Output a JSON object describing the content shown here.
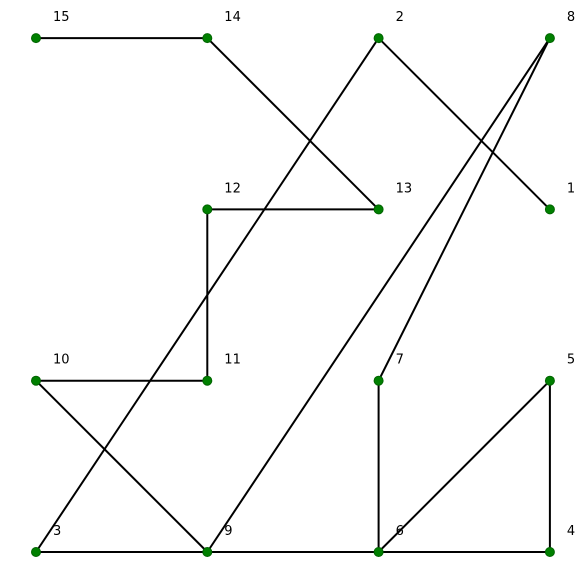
{
  "graph": {
    "node_color": "#008000",
    "edge_color": "#000000",
    "nodes": [
      {
        "id": "1",
        "label": "1",
        "col": 3,
        "row": 2
      },
      {
        "id": "2",
        "label": "2",
        "col": 2,
        "row": 3
      },
      {
        "id": "3",
        "label": "3",
        "col": 0,
        "row": 0
      },
      {
        "id": "4",
        "label": "4",
        "col": 3,
        "row": 0
      },
      {
        "id": "5",
        "label": "5",
        "col": 3,
        "row": 1
      },
      {
        "id": "6",
        "label": "6",
        "col": 2,
        "row": 0
      },
      {
        "id": "7",
        "label": "7",
        "col": 2,
        "row": 1
      },
      {
        "id": "8",
        "label": "8",
        "col": 3,
        "row": 3
      },
      {
        "id": "9",
        "label": "9",
        "col": 1,
        "row": 0
      },
      {
        "id": "10",
        "label": "10",
        "col": 0,
        "row": 1
      },
      {
        "id": "11",
        "label": "11",
        "col": 1,
        "row": 1
      },
      {
        "id": "12",
        "label": "12",
        "col": 1,
        "row": 2
      },
      {
        "id": "13",
        "label": "13",
        "col": 2,
        "row": 2
      },
      {
        "id": "14",
        "label": "14",
        "col": 1,
        "row": 3
      },
      {
        "id": "15",
        "label": "15",
        "col": 0,
        "row": 3
      }
    ],
    "edges": [
      [
        "15",
        "14"
      ],
      [
        "14",
        "13"
      ],
      [
        "2",
        "1"
      ],
      [
        "2",
        "3"
      ],
      [
        "8",
        "9"
      ],
      [
        "8",
        "7"
      ],
      [
        "12",
        "13"
      ],
      [
        "12",
        "11"
      ],
      [
        "10",
        "11"
      ],
      [
        "10",
        "9"
      ],
      [
        "7",
        "6"
      ],
      [
        "5",
        "6"
      ],
      [
        "5",
        "4"
      ],
      [
        "3",
        "9"
      ],
      [
        "9",
        "6"
      ],
      [
        "6",
        "4"
      ]
    ]
  }
}
